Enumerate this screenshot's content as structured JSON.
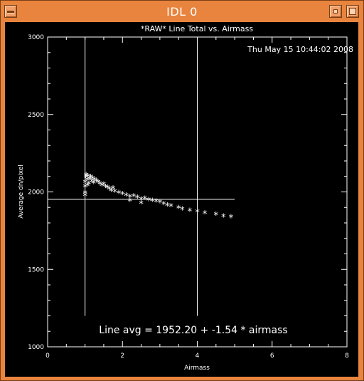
{
  "window": {
    "title": "IDL 0"
  },
  "plot": {
    "title": "*RAW* Line Total vs. Airmass",
    "timestamp": "Thu May 15 10:44:02 2008",
    "fit_annotation": "Line avg = 1952.20 + -1.54 * airmass"
  },
  "chart_data": {
    "type": "scatter",
    "title": "*RAW* Line Total vs. Airmass",
    "xlabel": "Airmass",
    "ylabel": "Average dn/pixel",
    "xlim": [
      0,
      8
    ],
    "ylim": [
      1000,
      3000
    ],
    "x_ticks": [
      "0",
      "2",
      "4",
      "6",
      "8"
    ],
    "y_ticks": [
      "1000",
      "1500",
      "2000",
      "2500",
      "3000"
    ],
    "marker": "asterisk",
    "color": "#ffffff",
    "points": [
      {
        "x": 1.0,
        "y": 1975
      },
      {
        "x": 1.0,
        "y": 1990
      },
      {
        "x": 1.0,
        "y": 2030
      },
      {
        "x": 1.0,
        "y": 2060
      },
      {
        "x": 1.02,
        "y": 2095
      },
      {
        "x": 1.03,
        "y": 2105
      },
      {
        "x": 1.05,
        "y": 2075
      },
      {
        "x": 1.06,
        "y": 2040
      },
      {
        "x": 1.08,
        "y": 2100
      },
      {
        "x": 1.1,
        "y": 2050
      },
      {
        "x": 1.12,
        "y": 2080
      },
      {
        "x": 1.15,
        "y": 2095
      },
      {
        "x": 1.18,
        "y": 2065
      },
      {
        "x": 1.2,
        "y": 2085
      },
      {
        "x": 1.23,
        "y": 2055
      },
      {
        "x": 1.25,
        "y": 2075
      },
      {
        "x": 1.3,
        "y": 2070
      },
      {
        "x": 1.35,
        "y": 2060
      },
      {
        "x": 1.4,
        "y": 2050
      },
      {
        "x": 1.45,
        "y": 2040
      },
      {
        "x": 1.5,
        "y": 2045
      },
      {
        "x": 1.55,
        "y": 2030
      },
      {
        "x": 1.6,
        "y": 2025
      },
      {
        "x": 1.65,
        "y": 2015
      },
      {
        "x": 1.7,
        "y": 2005
      },
      {
        "x": 1.75,
        "y": 2020
      },
      {
        "x": 1.8,
        "y": 2000
      },
      {
        "x": 1.9,
        "y": 1990
      },
      {
        "x": 2.0,
        "y": 1985
      },
      {
        "x": 2.1,
        "y": 1975
      },
      {
        "x": 2.2,
        "y": 1965
      },
      {
        "x": 2.2,
        "y": 1940
      },
      {
        "x": 2.3,
        "y": 1970
      },
      {
        "x": 2.4,
        "y": 1960
      },
      {
        "x": 2.5,
        "y": 1950
      },
      {
        "x": 2.5,
        "y": 1925
      },
      {
        "x": 2.6,
        "y": 1955
      },
      {
        "x": 2.7,
        "y": 1945
      },
      {
        "x": 2.8,
        "y": 1940
      },
      {
        "x": 2.9,
        "y": 1935
      },
      {
        "x": 3.0,
        "y": 1930
      },
      {
        "x": 3.1,
        "y": 1920
      },
      {
        "x": 3.2,
        "y": 1910
      },
      {
        "x": 3.3,
        "y": 1905
      },
      {
        "x": 3.5,
        "y": 1895
      },
      {
        "x": 3.6,
        "y": 1885
      },
      {
        "x": 3.8,
        "y": 1875
      },
      {
        "x": 4.0,
        "y": 1870
      },
      {
        "x": 4.2,
        "y": 1860
      },
      {
        "x": 4.5,
        "y": 1850
      },
      {
        "x": 4.7,
        "y": 1840
      },
      {
        "x": 4.9,
        "y": 1835
      }
    ],
    "reference_lines": [
      {
        "orientation": "vertical",
        "x": 1.0,
        "y_range": [
          1200,
          3000
        ]
      },
      {
        "orientation": "vertical",
        "x": 4.0,
        "y_range": [
          1200,
          3000
        ]
      },
      {
        "orientation": "horizontal",
        "y": 1952.2,
        "x_range": [
          0,
          5
        ]
      }
    ],
    "grid": false
  }
}
